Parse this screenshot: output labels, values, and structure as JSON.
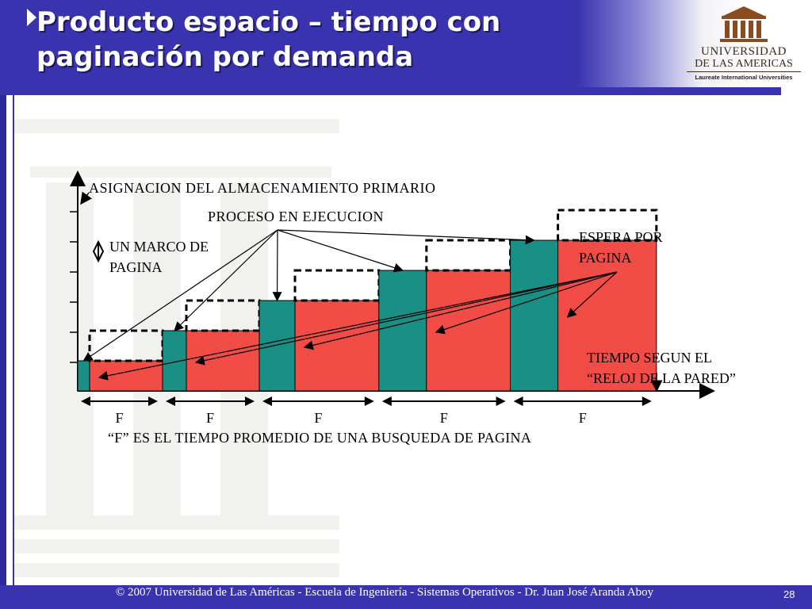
{
  "slide": {
    "title": "Producto espacio – tiempo con paginación por demanda",
    "footer": "© 2007 Universidad de  Las Américas  -  Escuela de Ingeniería  -   Sistemas Operativos  - Dr. Juan José Aranda Aboy",
    "page_number": "28"
  },
  "logo": {
    "line1": "UNIVERSIDAD",
    "line2": "DE LAS AMERICAS",
    "line3": "Laureate International Universities"
  },
  "diagram": {
    "y_axis_label": "ASIGNACION DEL ALMACENAMIENTO PRIMARIO",
    "process_label": "PROCESO EN EJECUCION",
    "frame_label_line1": "UN MARCO DE",
    "frame_label_line2": "PAGINA",
    "wait_label_line1": "ESPERA POR",
    "wait_label_line2": "PAGINA",
    "time_label_line1": "TIEMPO SEGUN EL",
    "time_label_line2": "“RELOJ DE LA PARED”",
    "f_labels": [
      "F",
      "F",
      "F",
      "F",
      "F"
    ],
    "caption": "“F” ES EL TIEMPO PROMEDIO DE UNA BUSQUEDA DE PAGINA",
    "steps": [
      {
        "frames": 1,
        "run": 0.25,
        "wait": 1
      },
      {
        "frames": 2,
        "run": 0.5,
        "wait": 1
      },
      {
        "frames": 3,
        "run": 0.75,
        "wait": 1.15
      },
      {
        "frames": 4,
        "run": 1,
        "wait": 1.15
      },
      {
        "frames": 5,
        "run": 1,
        "wait": 1.35
      }
    ],
    "colors": {
      "run": "#1a8f86",
      "wait": "#f24c46",
      "outline": "#000000"
    }
  }
}
